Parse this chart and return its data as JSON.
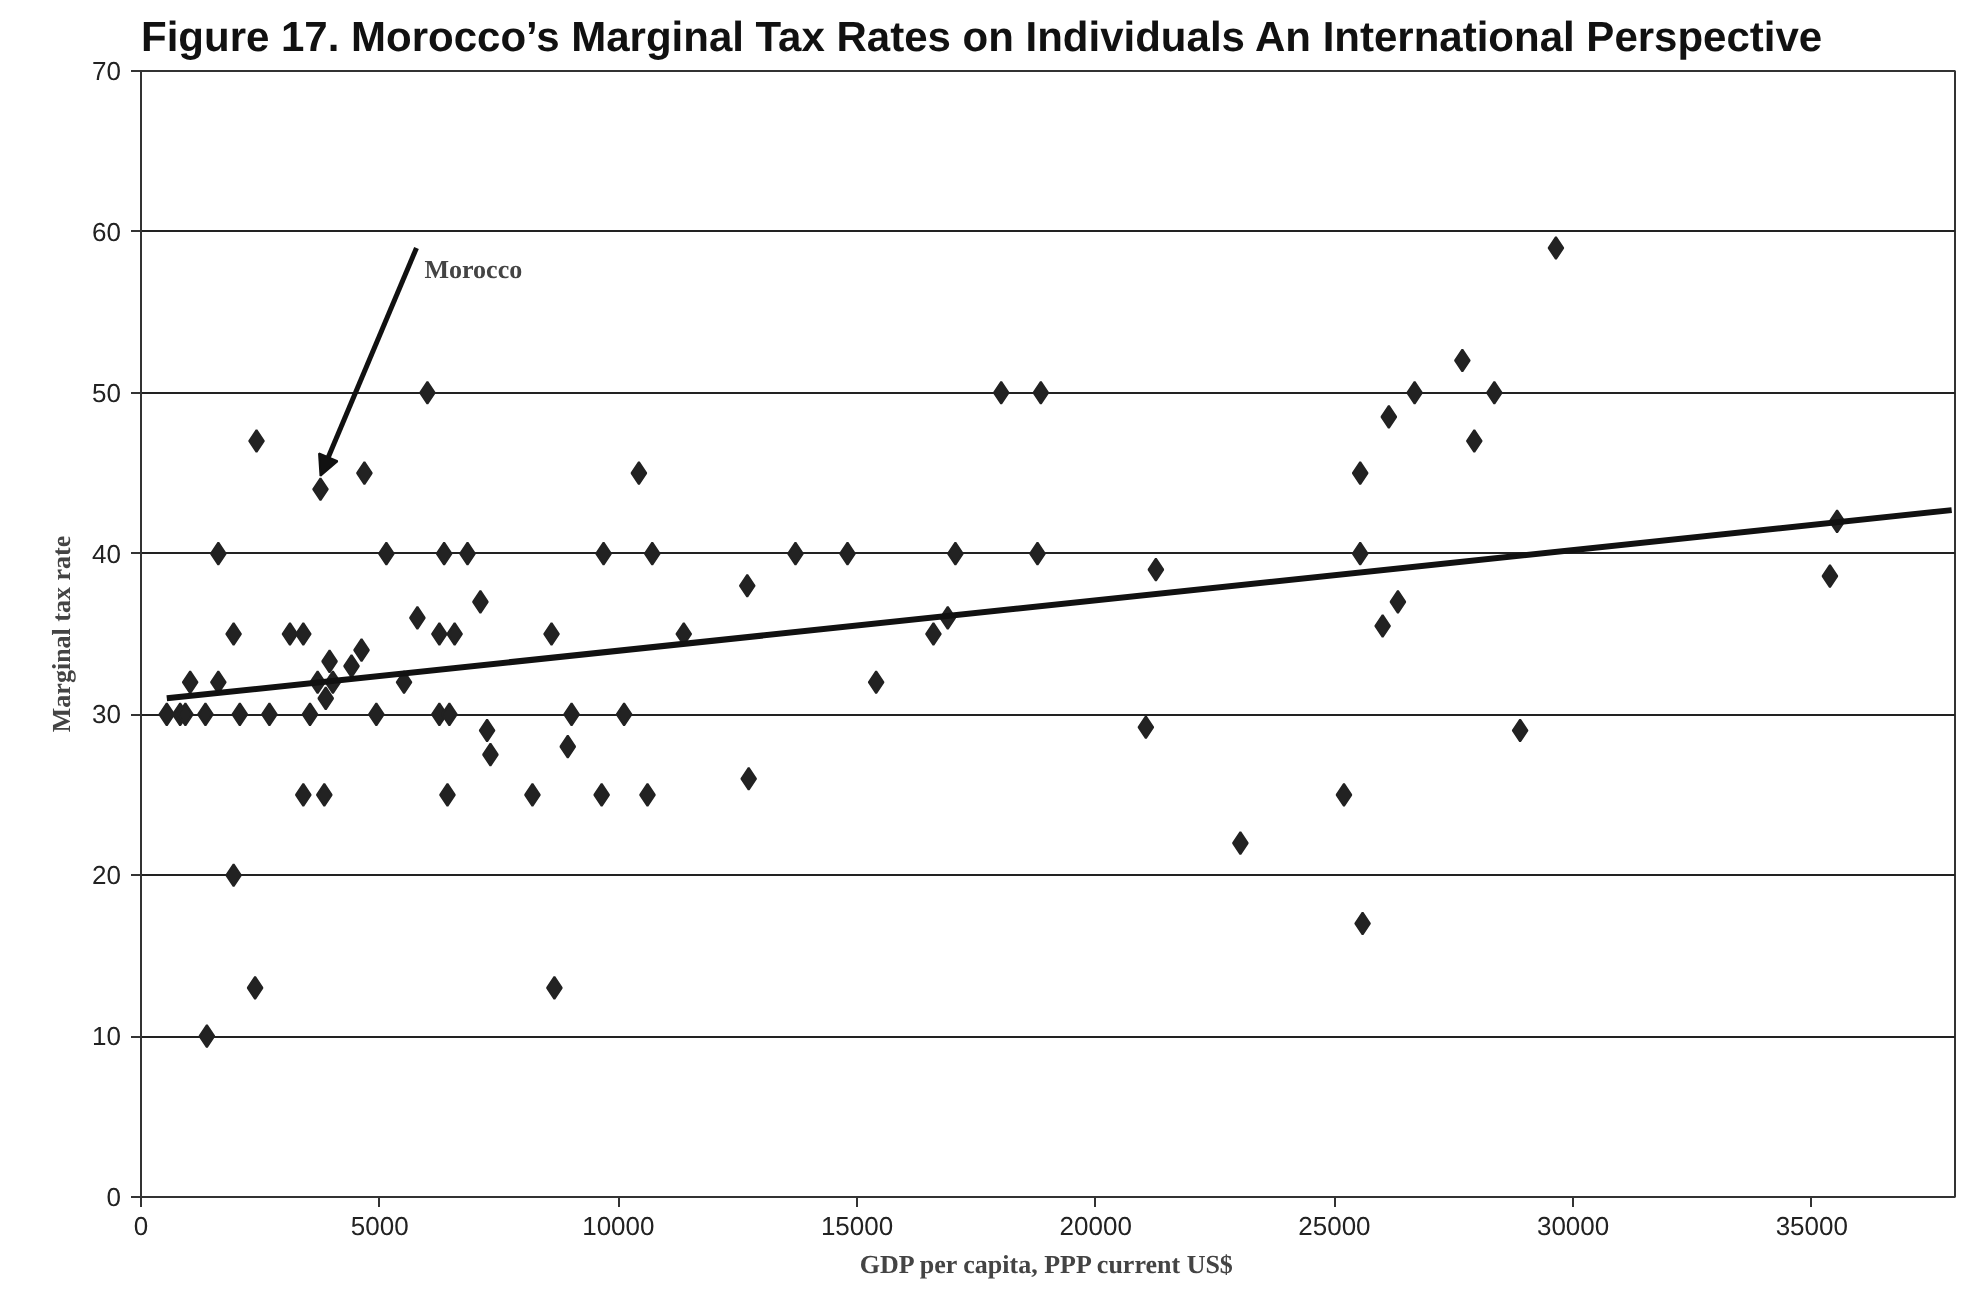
{
  "chart_data": {
    "type": "scatter",
    "title": "Figure 17.  Morocco’s Marginal Tax Rates on Individuals An International Perspective",
    "xlabel": "GDP per capita, PPP current US$",
    "ylabel": "Marginal tax rate",
    "xlim": [
      0,
      38000
    ],
    "xticks": [
      0,
      5000,
      10000,
      15000,
      20000,
      25000,
      30000,
      35000
    ],
    "ylim": [
      0,
      70
    ],
    "yticks": [
      0,
      10,
      20,
      30,
      40,
      50,
      60,
      70
    ],
    "grid": "y",
    "marker": "diamond",
    "annotations": [
      {
        "text": "Morocco",
        "x": 3760,
        "y": 44
      }
    ],
    "series": [
      {
        "color": "#222222",
        "x": [
          540,
          820,
          930,
          1030,
          1350,
          1380,
          1620,
          1620,
          1940,
          1940,
          2070,
          2390,
          2420,
          2690,
          3120,
          3400,
          3400,
          3540,
          3700,
          3760,
          3840,
          3870,
          3950,
          4020,
          4410,
          4620,
          4680,
          4930,
          5140,
          5510,
          5790,
          6000,
          6250,
          6250,
          6350,
          6420,
          6460,
          6570,
          6840,
          7110,
          7250,
          7320,
          8200,
          8600,
          8660,
          8940,
          9020,
          9650,
          9690,
          10120,
          10430,
          10610,
          10710,
          11370,
          12700,
          12730,
          13710,
          14800,
          15400,
          16600,
          16900,
          17060,
          18020,
          18780,
          18850,
          21050,
          21260,
          23030,
          25200,
          25540,
          25540,
          25590,
          26010,
          26140,
          26330,
          26680,
          27680,
          27930,
          28350,
          28890,
          29640,
          35380,
          35530
        ],
        "values": [
          30,
          30,
          30,
          32,
          30,
          10,
          40,
          32,
          35,
          20,
          30,
          13,
          47,
          30,
          35,
          35,
          25,
          30,
          32,
          44,
          25,
          31,
          33.3,
          32,
          33,
          34,
          45,
          30,
          40,
          32,
          36,
          50,
          35,
          30,
          40,
          25,
          30,
          35,
          40,
          37,
          29,
          27.5,
          25,
          35,
          13,
          28,
          30,
          25,
          40,
          30,
          45,
          25,
          40,
          35,
          38,
          26,
          40,
          40,
          32,
          35,
          36,
          40,
          50,
          40,
          50,
          29.2,
          39,
          22,
          25,
          45,
          40,
          17,
          35.5,
          48.5,
          37,
          50,
          52,
          47,
          50,
          29,
          59,
          38.6,
          42
        ]
      },
      {
        "type": "line",
        "marker": "none",
        "color": "#111111",
        "x": [
          540,
          37930
        ],
        "values": [
          31.0,
          42.7
        ]
      }
    ]
  }
}
